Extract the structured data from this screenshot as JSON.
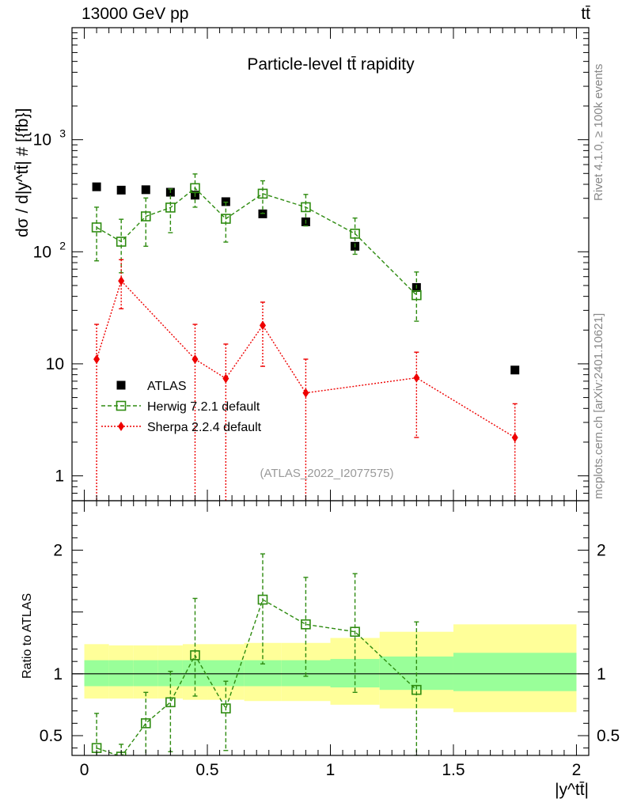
{
  "header": {
    "energy": "13000 GeV pp",
    "process": "tt̄",
    "title": "Particle-level tt̄ rapidity",
    "rivet": "Rivet 4.1.0, ≥ 100k events",
    "mcplots": "mcplots.cern.ch [arXiv:2401.10621]",
    "analysis": "(ATLAS_2022_I2077575)"
  },
  "colors": {
    "data": "#000000",
    "herwig": "#2e8b10",
    "sherpa": "#ee0000",
    "band_inner": "#99ff99",
    "band_outer": "#ffff99"
  },
  "chart_data": [
    {
      "type": "scatter",
      "title": "Particle-level tt̄ rapidity",
      "xlabel": "|y^tt̄|",
      "ylabel": "dσ / d|y^tt̄| # [{fb}]",
      "yscale": "log",
      "xlim": [
        -0.05,
        2.05
      ],
      "ylim": [
        0.6,
        10000
      ],
      "y_tick_labels": [
        "1",
        "10",
        "10^2",
        "10^3"
      ],
      "legend_position": "lower-left",
      "series": [
        {
          "name": "ATLAS",
          "marker": "square-filled",
          "x": [
            0.05,
            0.15,
            0.25,
            0.35,
            0.45,
            0.575,
            0.725,
            0.9,
            1.1,
            1.35,
            1.75
          ],
          "y": [
            380,
            355,
            358,
            340,
            320,
            280,
            218,
            185,
            112,
            48,
            8.8
          ]
        },
        {
          "name": "Herwig 7.2.1 default",
          "marker": "square-open",
          "line": "dashed",
          "x": [
            0.05,
            0.15,
            0.25,
            0.35,
            0.45,
            0.575,
            0.725,
            0.9,
            1.1,
            1.35
          ],
          "y": [
            165,
            123,
            207,
            248,
            370,
            197,
            330,
            250,
            145,
            41
          ],
          "err_lo": [
            82,
            58,
            95,
            100,
            120,
            75,
            110,
            80,
            50,
            17
          ],
          "err_hi": [
            85,
            72,
            95,
            115,
            125,
            80,
            100,
            75,
            55,
            25
          ]
        },
        {
          "name": "Sherpa 2.2.4 default",
          "marker": "diamond-filled",
          "line": "dotted",
          "x": [
            0.05,
            0.15,
            0.45,
            0.575,
            0.725,
            0.9,
            1.35,
            1.75
          ],
          "y": [
            11,
            55,
            11,
            7.4,
            22,
            5.5,
            7.5,
            2.2
          ],
          "err_lo": [
            11,
            24,
            11,
            7.4,
            12.5,
            5.5,
            5.3,
            2.2
          ],
          "err_hi": [
            11.5,
            30,
            11.5,
            7.6,
            13.5,
            5.5,
            5.2,
            2.2
          ]
        }
      ]
    },
    {
      "type": "scatter",
      "ylabel": "Ratio to ATLAS",
      "xlabel": "|y^tt̄|",
      "xlim": [
        -0.05,
        2.05
      ],
      "ylim": [
        0.34,
        2.4
      ],
      "x_ticks": [
        0,
        0.5,
        1,
        1.5,
        2
      ],
      "x_tick_labels": [
        "0",
        "0.5",
        "1",
        "1.5",
        "2"
      ],
      "y_tick_labels": [
        "0.5",
        "1",
        "2"
      ],
      "bands": {
        "edges": [
          0,
          0.1,
          0.2,
          0.3,
          0.4,
          0.5,
          0.65,
          0.8,
          1.0,
          1.2,
          1.5,
          2.0
        ],
        "inner_lo": [
          0.9,
          0.9,
          0.9,
          0.9,
          0.9,
          0.9,
          0.9,
          0.9,
          0.89,
          0.87,
          0.86
        ],
        "inner_hi": [
          1.11,
          1.11,
          1.11,
          1.11,
          1.11,
          1.11,
          1.11,
          1.11,
          1.12,
          1.14,
          1.17
        ],
        "outer_lo": [
          0.8,
          0.8,
          0.8,
          0.8,
          0.79,
          0.79,
          0.78,
          0.78,
          0.75,
          0.72,
          0.69
        ],
        "outer_hi": [
          1.24,
          1.23,
          1.23,
          1.23,
          1.24,
          1.24,
          1.25,
          1.25,
          1.29,
          1.34,
          1.4
        ]
      },
      "series": [
        {
          "name": "Herwig 7.2.1 default",
          "marker": "square-open",
          "line": "dashed",
          "x": [
            0.05,
            0.15,
            0.25,
            0.35,
            0.45,
            0.575,
            0.725,
            0.9,
            1.1,
            1.35
          ],
          "y": [
            0.4,
            0.33,
            0.6,
            0.77,
            1.15,
            0.72,
            1.6,
            1.4,
            1.34,
            0.87
          ],
          "err_lo": [
            0.25,
            0.1,
            0.27,
            0.4,
            0.33,
            0.34,
            0.52,
            0.42,
            0.49,
            0.53
          ],
          "err_hi": [
            0.28,
            0.1,
            0.25,
            0.25,
            0.46,
            0.22,
            0.37,
            0.38,
            0.47,
            0.55
          ]
        }
      ]
    }
  ]
}
